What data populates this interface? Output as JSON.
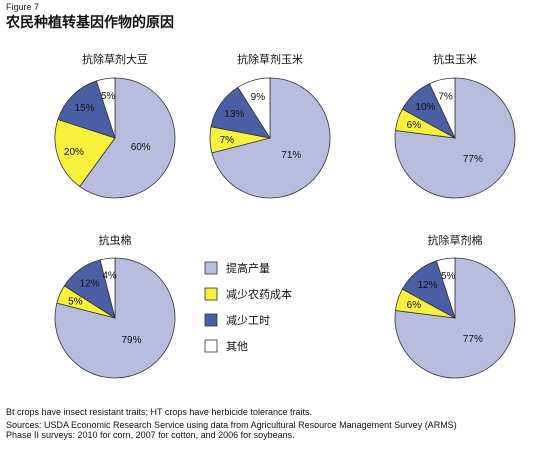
{
  "figure_label": "Figure 7",
  "title": "农民种植转基因作物的原因",
  "legend": [
    {
      "label": "提高产量",
      "color": "#b8bde0"
    },
    {
      "label": "减少农药成本",
      "color": "#f7f13d"
    },
    {
      "label": "减少工时",
      "color": "#4a5fa6"
    },
    {
      "label": "其他",
      "color": "#ffffff"
    }
  ],
  "chart_data": [
    {
      "type": "pie",
      "title": "抗除草剂大豆",
      "series": [
        {
          "name": "提高产量",
          "value": 60
        },
        {
          "name": "减少农药成本",
          "value": 20
        },
        {
          "name": "减少工时",
          "value": 15
        },
        {
          "name": "其他",
          "value": 5
        }
      ],
      "labels": [
        "60%",
        "20%",
        "15%",
        "5%"
      ]
    },
    {
      "type": "pie",
      "title": "抗除草剂玉米",
      "series": [
        {
          "name": "提高产量",
          "value": 71
        },
        {
          "name": "减少农药成本",
          "value": 7
        },
        {
          "name": "减少工时",
          "value": 13
        },
        {
          "name": "其他",
          "value": 9
        }
      ],
      "labels": [
        "71%",
        "7%",
        "13%",
        "9%"
      ]
    },
    {
      "type": "pie",
      "title": "抗虫玉米",
      "series": [
        {
          "name": "提高产量",
          "value": 77
        },
        {
          "name": "减少农药成本",
          "value": 6
        },
        {
          "name": "减少工时",
          "value": 10
        },
        {
          "name": "其他",
          "value": 7
        }
      ],
      "labels": [
        "77%",
        "6%",
        "10%",
        "7%"
      ]
    },
    {
      "type": "pie",
      "title": "抗虫棉",
      "series": [
        {
          "name": "提高产量",
          "value": 79
        },
        {
          "name": "减少农药成本",
          "value": 5
        },
        {
          "name": "减少工时",
          "value": 12
        },
        {
          "name": "其他",
          "value": 4
        }
      ],
      "labels": [
        "79%",
        "5%",
        "12%",
        "4%"
      ]
    },
    {
      "type": "pie",
      "title": "抗除草剂棉",
      "series": [
        {
          "name": "提高产量",
          "value": 77
        },
        {
          "name": "减少农药成本",
          "value": 6
        },
        {
          "name": "减少工时",
          "value": 12
        },
        {
          "name": "其他",
          "value": 5
        }
      ],
      "labels": [
        "77%",
        "6%",
        "12%",
        "5%"
      ]
    }
  ],
  "notes": {
    "line1": "Bt crops have insect resistant traits; HT crops have herbicide tolerance traits.",
    "line2": "Sources: USDA Economic Research Service using data from Agricultural Resource Management Survey (ARMS)",
    "line3": "Phase II surveys: 2010 for corn, 2007 for cotton, and 2006 for soybeans."
  }
}
